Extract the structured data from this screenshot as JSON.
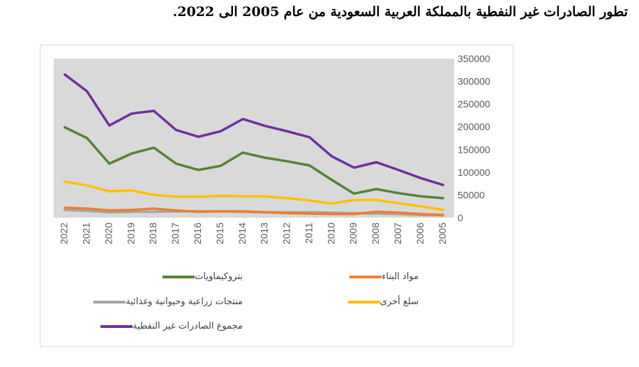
{
  "title": "تطور الصادرات غير النفطية بالمملكة العربية السعودية من عام 2005 الى 2022.",
  "chart_data": {
    "type": "line",
    "title": "تطور الصادرات غير النفطية بالمملكة العربية السعودية من عام 2005 الى 2022.",
    "x": [
      "2022",
      "2021",
      "2020",
      "2019",
      "2018",
      "2017",
      "2016",
      "2015",
      "2014",
      "2013",
      "2012",
      "2011",
      "2010",
      "2009",
      "2008",
      "2007",
      "2006",
      "2005"
    ],
    "ylim": [
      0,
      350000
    ],
    "yticks": [
      0,
      50000,
      100000,
      150000,
      200000,
      250000,
      300000,
      350000
    ],
    "ytick_labels": [
      "0",
      "50000",
      "100000",
      "150000",
      "200000",
      "250000",
      "300000",
      "350000"
    ],
    "y_axis_position": "right",
    "grid": false,
    "plot_background": "#d9d9d9",
    "legend_position": "bottom",
    "series": [
      {
        "name": "بتروكيماويات",
        "color": "#548235",
        "values": [
          199000,
          175000,
          119000,
          141000,
          154000,
          119000,
          105000,
          114000,
          143000,
          132000,
          124000,
          115000,
          83000,
          53000,
          63000,
          54000,
          47000,
          43000
        ]
      },
      {
        "name": "مواد البناء",
        "color": "#ed7d31",
        "values": [
          22000,
          20000,
          16000,
          17000,
          20000,
          16000,
          13000,
          14000,
          14000,
          12000,
          10000,
          9000,
          8000,
          8000,
          13000,
          11000,
          8000,
          6000
        ]
      },
      {
        "name": "منتجات زراعية وحيوانية وغذائية",
        "color": "#a5a5a5",
        "values": [
          17000,
          15000,
          12000,
          13000,
          13000,
          14000,
          14000,
          14000,
          13000,
          12000,
          12000,
          12000,
          11000,
          10000,
          9000,
          8000,
          6000,
          5000
        ]
      },
      {
        "name": "سلع أخرى",
        "color": "#ffc000",
        "values": [
          79000,
          71000,
          58000,
          60000,
          50000,
          46000,
          46000,
          48000,
          47000,
          47000,
          43000,
          38000,
          31000,
          39000,
          39000,
          32000,
          25000,
          17000
        ]
      },
      {
        "name": "مجموع الصادرات غير النفطية",
        "color": "#7030a0",
        "values": [
          315000,
          278000,
          203000,
          229000,
          235000,
          193000,
          178000,
          190000,
          217000,
          202000,
          190000,
          177000,
          135000,
          110000,
          122000,
          105000,
          87000,
          72000
        ]
      }
    ]
  },
  "legend": [
    {
      "label": "بتروكيماويات",
      "color": "#548235"
    },
    {
      "label": "مواد البناء",
      "color": "#ed7d31"
    },
    {
      "label": "منتجات زراعية وحيوانية وغذائية",
      "color": "#a5a5a5"
    },
    {
      "label": "سلع أخرى",
      "color": "#ffc000"
    },
    {
      "label": "مجموع الصادرات غير النفطية",
      "color": "#7030a0"
    }
  ]
}
